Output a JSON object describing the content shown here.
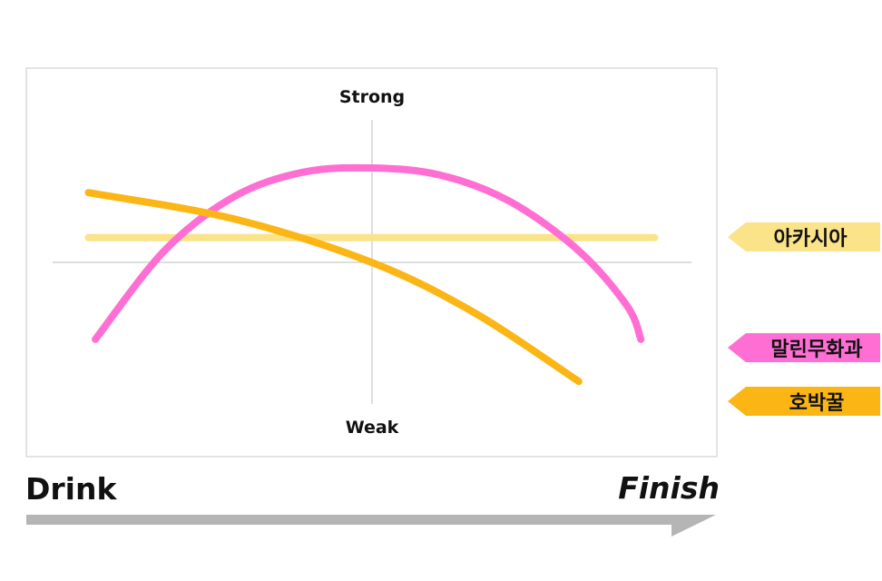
{
  "chart_data": {
    "type": "line",
    "title": "",
    "top_label": "Strong",
    "bottom_label": "Weak",
    "start_label": "Drink",
    "end_label": "Finish",
    "x_range": [
      0,
      1
    ],
    "y_range": [
      -1,
      1
    ],
    "series": [
      {
        "name": "아카시아",
        "color": "#FAE389",
        "points": [
          [
            0.09,
            0.17
          ],
          [
            0.91,
            0.17
          ]
        ]
      },
      {
        "name": "말린무화과",
        "color": "#FF6FD3",
        "points": [
          [
            0.1,
            -0.53
          ],
          [
            0.2,
            0.08
          ],
          [
            0.3,
            0.45
          ],
          [
            0.4,
            0.62
          ],
          [
            0.5,
            0.65
          ],
          [
            0.6,
            0.6
          ],
          [
            0.7,
            0.42
          ],
          [
            0.8,
            0.08
          ],
          [
            0.87,
            -0.3
          ],
          [
            0.89,
            -0.53
          ]
        ]
      },
      {
        "name": "호박꿀",
        "color": "#FBB616",
        "points": [
          [
            0.09,
            0.48
          ],
          [
            0.3,
            0.3
          ],
          [
            0.5,
            0.0
          ],
          [
            0.65,
            -0.35
          ],
          [
            0.8,
            -0.82
          ]
        ]
      }
    ]
  }
}
